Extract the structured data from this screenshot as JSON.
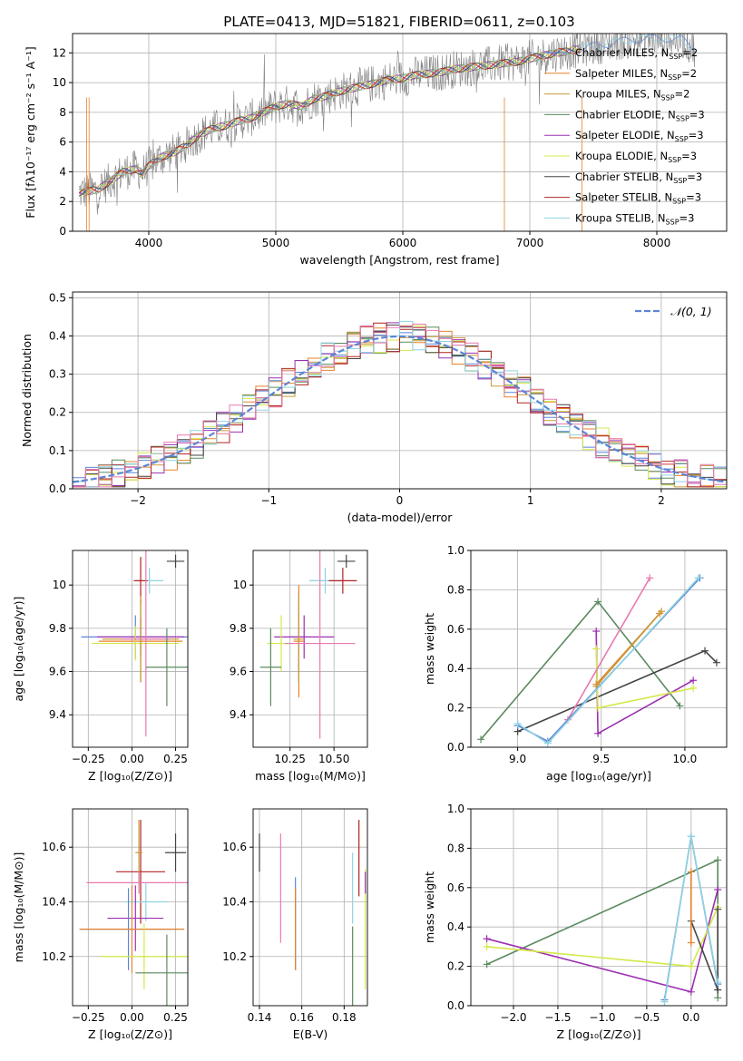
{
  "figure_title": "PLATE=0413, MJD=51821, FIBERID=0611, z=0.103",
  "chart_data": [
    {
      "id": "spectrum",
      "type": "line",
      "title": "PLATE=0413, MJD=51821, FIBERID=0611, z=0.103",
      "xlabel": "wavelength [Angstrom, rest frame]",
      "ylabel": "Flux [fλ10⁻¹⁷ erg cm⁻² s⁻¹ A⁻¹]",
      "xlim": [
        3400,
        8550
      ],
      "ylim": [
        0,
        13.3
      ],
      "xticks": [
        4000,
        5000,
        6000,
        7000,
        8000
      ],
      "yticks": [
        0,
        2,
        4,
        6,
        8,
        10,
        12
      ],
      "grid": true,
      "legend_position": "right",
      "legend": [
        {
          "label": "Chabrier MILES, N",
          "sub": "SSP",
          "suffix": "=2",
          "color": "#5b85d6"
        },
        {
          "label": "Salpeter MILES, N",
          "sub": "SSP",
          "suffix": "=2",
          "color": "#e8822a"
        },
        {
          "label": "Kroupa MILES, N",
          "sub": "SSP",
          "suffix": "=2",
          "color": "#c89a3a"
        },
        {
          "label": "Chabrier ELODIE, N",
          "sub": "SSP",
          "suffix": "=3",
          "color": "#5a8a5e"
        },
        {
          "label": "Salpeter ELODIE, N",
          "sub": "SSP",
          "suffix": "=3",
          "color": "#9b30b0"
        },
        {
          "label": "Kroupa ELODIE, N",
          "sub": "SSP",
          "suffix": "=3",
          "color": "#d4e84a"
        },
        {
          "label": "Chabrier STELIB, N",
          "sub": "SSP",
          "suffix": "=3",
          "color": "#444444"
        },
        {
          "label": "Salpeter STELIB, N",
          "sub": "SSP",
          "suffix": "=3",
          "color": "#b22222"
        },
        {
          "label": "Kroupa STELIB, N",
          "sub": "SSP",
          "suffix": "=3",
          "color": "#8fd3e0"
        }
      ],
      "data_color": "#808080",
      "continuum": [
        [
          3450,
          2.6
        ],
        [
          3600,
          2.8
        ],
        [
          3700,
          3.4
        ],
        [
          3800,
          4.0
        ],
        [
          3900,
          4.2
        ],
        [
          3950,
          3.9
        ],
        [
          4000,
          4.4
        ],
        [
          4100,
          5.0
        ],
        [
          4200,
          5.3
        ],
        [
          4300,
          5.8
        ],
        [
          4400,
          6.5
        ],
        [
          4500,
          6.9
        ],
        [
          4600,
          7.1
        ],
        [
          4700,
          7.4
        ],
        [
          4800,
          7.6
        ],
        [
          4900,
          8.0
        ],
        [
          5000,
          8.4
        ],
        [
          5100,
          8.6
        ],
        [
          5200,
          8.4
        ],
        [
          5300,
          8.9
        ],
        [
          5400,
          9.1
        ],
        [
          5500,
          9.4
        ],
        [
          5600,
          9.6
        ],
        [
          5700,
          9.8
        ],
        [
          5800,
          10.0
        ],
        [
          5900,
          10.2
        ],
        [
          6000,
          10.3
        ],
        [
          6100,
          10.5
        ],
        [
          6200,
          10.6
        ],
        [
          6300,
          10.7
        ],
        [
          6400,
          10.9
        ],
        [
          6500,
          11.0
        ],
        [
          6600,
          11.1
        ],
        [
          6700,
          11.2
        ],
        [
          6800,
          11.3
        ],
        [
          6900,
          11.4
        ],
        [
          7000,
          11.6
        ],
        [
          7100,
          11.8
        ],
        [
          7200,
          12.0
        ],
        [
          7300,
          12.1
        ],
        [
          7400,
          12.3
        ]
      ],
      "data_extension": [
        [
          7400,
          12.3
        ],
        [
          7600,
          12.6
        ],
        [
          7800,
          12.9
        ],
        [
          8000,
          13.0
        ],
        [
          8200,
          12.9
        ],
        [
          8300,
          12.3
        ]
      ]
    },
    {
      "id": "residuals",
      "type": "histogram",
      "xlabel": "(data-model)/error",
      "ylabel": "Normed distribution",
      "xlim": [
        -2.5,
        2.5
      ],
      "ylim": [
        0,
        0.515
      ],
      "xticks": [
        -2,
        -1,
        0,
        1,
        2
      ],
      "yticks": [
        0.0,
        0.1,
        0.2,
        0.3,
        0.4,
        0.5
      ],
      "grid": true,
      "legend_position": "top-right",
      "legend": [
        {
          "label": "𝒩(0, 1)",
          "color": "#5b85d6",
          "style": "dashed"
        }
      ]
    },
    {
      "id": "age_vs_Z",
      "type": "errorbar",
      "xlabel": "Z [log₁₀(Z/Z⊙)]",
      "ylabel": "age  [log₁₀(age/yr)]",
      "xlim": [
        -0.34,
        0.32
      ],
      "ylim": [
        9.25,
        10.16
      ],
      "xticks": [
        -0.25,
        0.0,
        0.25
      ],
      "yticks": [
        9.4,
        9.6,
        9.8,
        10.0
      ],
      "points": [
        {
          "x": 0.1,
          "y": 10.02,
          "xerr": 0.08,
          "yerr": 0.06,
          "color": "#8fd3e0"
        },
        {
          "x": 0.25,
          "y": 10.11,
          "xerr": 0.05,
          "yerr": 0.03,
          "color": "#444444"
        },
        {
          "x": 0.05,
          "y": 10.02,
          "xerr": 0.04,
          "yerr": 0.11,
          "color": "#b22222"
        },
        {
          "x": 0.02,
          "y": 9.76,
          "xerr": 0.31,
          "yerr": 0.1,
          "color": "#5b85d6"
        },
        {
          "x": 0.05,
          "y": 9.76,
          "xerr": 0.25,
          "yerr": 0.09,
          "color": "#9b30b0"
        },
        {
          "x": 0.05,
          "y": 9.74,
          "xerr": 0.24,
          "yerr": 0.19,
          "color": "#e8822a"
        },
        {
          "x": 0.02,
          "y": 9.73,
          "xerr": 0.25,
          "yerr": 0.08,
          "color": "#d4e84a"
        },
        {
          "x": 0.05,
          "y": 9.75,
          "xerr": 0.22,
          "yerr": 0.2,
          "color": "#c89a3a"
        },
        {
          "x": 0.08,
          "y": 9.75,
          "xerr": 0.14,
          "yerr": 0.45,
          "color": "#e879b0"
        },
        {
          "x": 0.2,
          "y": 9.62,
          "xerr": 0.12,
          "yerr": 0.18,
          "color": "#5a8a5e"
        }
      ]
    },
    {
      "id": "age_vs_mass",
      "type": "errorbar",
      "xlabel": "mass [log₁₀(M/M⊙)]",
      "ylabel": "",
      "xlim": [
        10.04,
        10.69
      ],
      "ylim": [
        9.25,
        10.16
      ],
      "xticks": [
        10.25,
        10.5
      ],
      "yticks": [
        9.4,
        9.6,
        9.8,
        10.0
      ],
      "points": [
        {
          "x": 10.45,
          "y": 10.02,
          "xerr": 0.09,
          "yerr": 0.06,
          "color": "#8fd3e0"
        },
        {
          "x": 10.57,
          "y": 10.11,
          "xerr": 0.05,
          "yerr": 0.03,
          "color": "#444444"
        },
        {
          "x": 10.55,
          "y": 10.02,
          "xerr": 0.08,
          "yerr": 0.06,
          "color": "#b22222"
        },
        {
          "x": 10.3,
          "y": 9.76,
          "xerr": 0.05,
          "yerr": 0.21,
          "color": "#5b85d6"
        },
        {
          "x": 10.33,
          "y": 9.76,
          "xerr": 0.17,
          "yerr": 0.1,
          "color": "#9b30b0"
        },
        {
          "x": 10.3,
          "y": 9.74,
          "xerr": 0.03,
          "yerr": 0.26,
          "color": "#e8822a"
        },
        {
          "x": 10.2,
          "y": 9.73,
          "xerr": 0.08,
          "yerr": 0.13,
          "color": "#d4e84a"
        },
        {
          "x": 10.3,
          "y": 9.75,
          "xerr": 0.03,
          "yerr": 0.2,
          "color": "#c89a3a"
        },
        {
          "x": 10.42,
          "y": 9.73,
          "xerr": 0.2,
          "yerr": 0.44,
          "color": "#e879b0"
        },
        {
          "x": 10.14,
          "y": 9.62,
          "xerr": 0.06,
          "yerr": 0.18,
          "color": "#5a8a5e"
        }
      ]
    },
    {
      "id": "weight_vs_age",
      "type": "line",
      "xlabel": "age  [log₁₀(age/yr)]",
      "ylabel": "mass weight",
      "xlim": [
        8.72,
        10.25
      ],
      "ylim": [
        0,
        1.0
      ],
      "xticks": [
        9.0,
        9.5,
        10.0
      ],
      "yticks": [
        0.0,
        0.2,
        0.4,
        0.6,
        0.8,
        1.0
      ],
      "series": [
        {
          "color": "#5a8a5e",
          "points": [
            [
              8.78,
              0.04
            ],
            [
              9.48,
              0.74
            ],
            [
              9.97,
              0.21
            ]
          ]
        },
        {
          "color": "#444444",
          "points": [
            [
              9.0,
              0.08
            ],
            [
              10.12,
              0.49
            ],
            [
              10.19,
              0.43
            ]
          ]
        },
        {
          "color": "#9b30b0",
          "points": [
            [
              9.47,
              0.59
            ],
            [
              9.48,
              0.07
            ],
            [
              10.05,
              0.34
            ]
          ]
        },
        {
          "color": "#d4e84a",
          "points": [
            [
              9.47,
              0.5
            ],
            [
              9.48,
              0.2
            ],
            [
              10.05,
              0.3
            ]
          ]
        },
        {
          "color": "#e879b0",
          "points": [
            [
              9.3,
              0.14
            ],
            [
              9.79,
              0.86
            ]
          ]
        },
        {
          "color": "#e8822a",
          "points": [
            [
              9.47,
              0.32
            ],
            [
              9.85,
              0.68
            ]
          ]
        },
        {
          "color": "#c89a3a",
          "points": [
            [
              9.47,
              0.31
            ],
            [
              9.86,
              0.69
            ]
          ]
        },
        {
          "color": "#5b85d6",
          "points": [
            [
              9.0,
              0.11
            ],
            [
              9.18,
              0.03
            ],
            [
              10.09,
              0.86
            ]
          ]
        },
        {
          "color": "#8fd3e0",
          "points": [
            [
              9.0,
              0.12
            ],
            [
              9.18,
              0.02
            ],
            [
              10.08,
              0.86
            ]
          ]
        }
      ]
    },
    {
      "id": "mass_vs_Z",
      "type": "errorbar",
      "xlabel": "Z [log₁₀(Z/Z⊙)]",
      "ylabel": "mass [log₁₀(M/M⊙)]",
      "xlim": [
        -0.34,
        0.32
      ],
      "ylim": [
        10.02,
        10.74
      ],
      "xticks": [
        -0.25,
        0.0,
        0.25
      ],
      "yticks": [
        10.2,
        10.4,
        10.6
      ],
      "points": [
        {
          "x": 0.25,
          "y": 10.58,
          "xerr": 0.06,
          "yerr": 0.07,
          "color": "#444444"
        },
        {
          "x": 0.05,
          "y": 10.51,
          "xerr": 0.14,
          "yerr": 0.19,
          "color": "#b22222"
        },
        {
          "x": 0.04,
          "y": 10.58,
          "xerr": 0.02,
          "yerr": 0.12,
          "color": "#c89a3a"
        },
        {
          "x": 0.04,
          "y": 10.47,
          "xerr": 0.3,
          "yerr": 0.04,
          "color": "#e879b0"
        },
        {
          "x": 0.08,
          "y": 10.4,
          "xerr": 0.12,
          "yerr": 0.07,
          "color": "#8fd3e0"
        },
        {
          "x": 0.02,
          "y": 10.34,
          "xerr": 0.16,
          "yerr": 0.12,
          "color": "#9b30b0"
        },
        {
          "x": -0.02,
          "y": 10.3,
          "xerr": 0.28,
          "yerr": 0.15,
          "color": "#5b85d6"
        },
        {
          "x": 0.0,
          "y": 10.3,
          "xerr": 0.3,
          "yerr": 0.16,
          "color": "#e8822a"
        },
        {
          "x": 0.07,
          "y": 10.2,
          "xerr": 0.25,
          "yerr": 0.12,
          "color": "#d4e84a"
        },
        {
          "x": 0.2,
          "y": 10.14,
          "xerr": 0.18,
          "yerr": 0.14,
          "color": "#5a8a5e"
        }
      ]
    },
    {
      "id": "mass_vs_ebv",
      "type": "errorbar",
      "xlabel": "E(B-V)",
      "ylabel": "",
      "xlim": [
        0.137,
        0.191
      ],
      "ylim": [
        10.02,
        10.74
      ],
      "xticks": [
        0.14,
        0.16,
        0.18
      ],
      "yticks": [
        10.2,
        10.4,
        10.6
      ],
      "points": [
        {
          "x": 0.14,
          "y": 10.58,
          "yerr": 0.07,
          "color": "#444444"
        },
        {
          "x": 0.15,
          "y": 10.45,
          "yerr": 0.2,
          "color": "#e879b0"
        },
        {
          "x": 0.157,
          "y": 10.32,
          "yerr": 0.17,
          "color": "#5b85d6"
        },
        {
          "x": 0.157,
          "y": 10.3,
          "yerr": 0.15,
          "color": "#e8822a"
        },
        {
          "x": 0.184,
          "y": 10.45,
          "yerr": 0.13,
          "color": "#8fd3e0"
        },
        {
          "x": 0.184,
          "y": 10.15,
          "yerr": 0.16,
          "color": "#5a8a5e"
        },
        {
          "x": 0.187,
          "y": 10.56,
          "yerr": 0.14,
          "color": "#b22222"
        },
        {
          "x": 0.19,
          "y": 10.3,
          "yerr": 0.22,
          "color": "#d4e84a"
        },
        {
          "x": 0.19,
          "y": 10.47,
          "yerr": 0.04,
          "color": "#9b30b0"
        }
      ]
    },
    {
      "id": "weight_vs_Z",
      "type": "line",
      "xlabel": "Z [log₁₀(Z/Z⊙)]",
      "ylabel": "mass weight",
      "xlim": [
        -2.48,
        0.4
      ],
      "ylim": [
        0,
        1.0
      ],
      "xticks": [
        -2.0,
        -1.5,
        -1.0,
        -0.5,
        0.0
      ],
      "yticks": [
        0.0,
        0.2,
        0.4,
        0.6,
        0.8,
        1.0
      ],
      "series": [
        {
          "color": "#5a8a5e",
          "points": [
            [
              -2.3,
              0.21
            ],
            [
              0.3,
              0.74
            ],
            [
              0.3,
              0.04
            ]
          ]
        },
        {
          "color": "#9b30b0",
          "points": [
            [
              -2.3,
              0.34
            ],
            [
              0.0,
              0.07
            ],
            [
              0.3,
              0.59
            ]
          ]
        },
        {
          "color": "#d4e84a",
          "points": [
            [
              -2.3,
              0.3
            ],
            [
              0.0,
              0.2
            ],
            [
              0.3,
              0.5
            ]
          ]
        },
        {
          "color": "#444444",
          "points": [
            [
              0.0,
              0.43
            ],
            [
              0.3,
              0.08
            ],
            [
              0.3,
              0.49
            ]
          ]
        },
        {
          "color": "#e8822a",
          "points": [
            [
              0.0,
              0.32
            ],
            [
              0.0,
              0.68
            ]
          ]
        },
        {
          "color": "#5b85d6",
          "points": [
            [
              -0.3,
              0.03
            ],
            [
              0.0,
              0.86
            ],
            [
              0.3,
              0.11
            ]
          ]
        },
        {
          "color": "#8fd3e0",
          "points": [
            [
              -0.3,
              0.02
            ],
            [
              0.0,
              0.86
            ],
            [
              0.3,
              0.12
            ]
          ]
        }
      ]
    }
  ]
}
